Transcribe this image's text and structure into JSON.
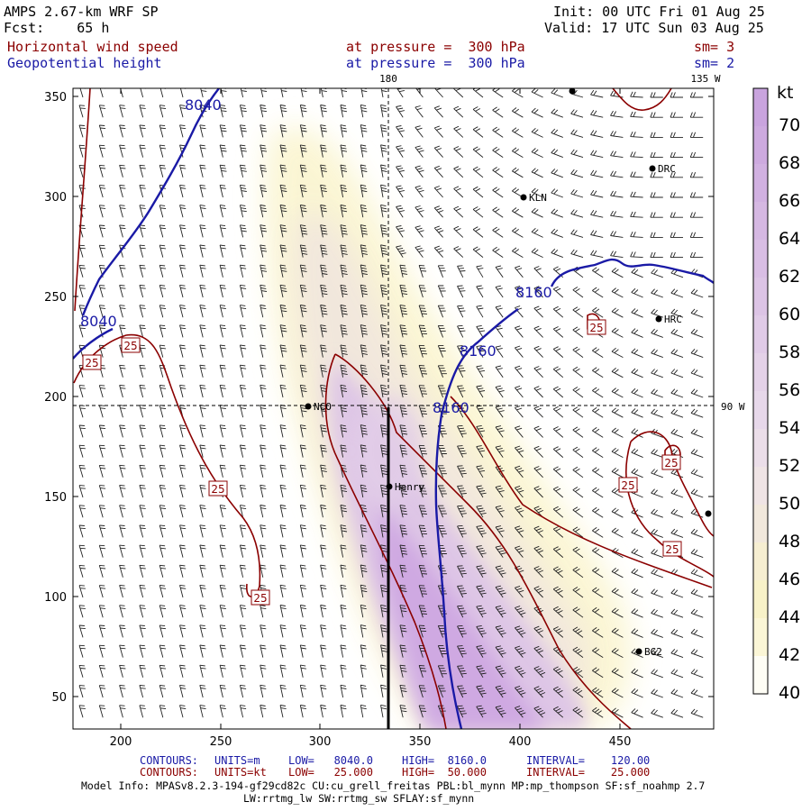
{
  "header": {
    "model_line": "AMPS 2.67-km WRF SP",
    "forecast_line": "Fcst:    65 h",
    "init_line": "Init: 00 UTC Fri 01 Aug 25",
    "valid_line": "Valid: 17 UTC Sun 03 Aug 25",
    "field1_name": "Horizontal wind speed",
    "field1_level": "at pressure =  300 hPa",
    "field1_sm": "sm= 3",
    "field2_name": "Geopotential height",
    "field2_level": "at pressure =  300 hPa",
    "field2_sm": "sm= 2"
  },
  "map": {
    "x_ticks": [
      "200",
      "250",
      "300",
      "350",
      "400",
      "450"
    ],
    "y_ticks": [
      "350",
      "300",
      "250",
      "200",
      "150",
      "100",
      "50"
    ],
    "meridian_labels": [
      "180",
      "135 W",
      "90 W"
    ],
    "stations": [
      "NCO",
      "Henry",
      "KLN",
      "DRC",
      "HRC",
      "BG2"
    ],
    "height_contour_labels": [
      "8040",
      "8040",
      "8160",
      "8160",
      "8160"
    ],
    "speed_contour_labels": [
      "25",
      "25",
      "25",
      "25",
      "25",
      "25",
      "25",
      "25"
    ],
    "colors": {
      "height_contour": "#1a1aa6",
      "speed_contour": "#8b0000",
      "barb": "#222222"
    }
  },
  "colorbar": {
    "unit": "kt",
    "levels": [
      "70",
      "68",
      "66",
      "64",
      "62",
      "60",
      "58",
      "56",
      "54",
      "52",
      "50",
      "48",
      "46",
      "44",
      "42",
      "40"
    ],
    "colors": [
      "#c9a4de",
      "#cdaadf",
      "#d1b1e1",
      "#d5b8e2",
      "#d9bee4",
      "#dcc4e5",
      "#e0cbe7",
      "#e4d2e8",
      "#e7d8ea",
      "#ebdee9",
      "#efe4e5",
      "#f1e8dc",
      "#f6eed1",
      "#f8f2c8",
      "#fbf6d6",
      "#fefdf5"
    ]
  },
  "footer": {
    "contours1_label": "CONTOURS:",
    "contours1_units": "UNITS=m",
    "contours1_low": "LOW=   8040.0",
    "contours1_high": "HIGH=  8160.0",
    "contours1_interval": "INTERVAL=    120.00",
    "contours2_label": "CONTOURS:",
    "contours2_units": "UNITS=kt",
    "contours2_low": "LOW=   25.000",
    "contours2_high": "HIGH=  50.000",
    "contours2_interval": "INTERVAL=    25.000",
    "model_info_1": "Model Info: MPASv8.2.3-194-gf29cd82c CU:cu_grell_freitas PBL:bl_mynn MP:mp_thompson SF:sf_noahmp 2.7",
    "model_info_2": "LW:rrtmg_lw SW:rrtmg_sw SFLAY:sf_mynn"
  }
}
